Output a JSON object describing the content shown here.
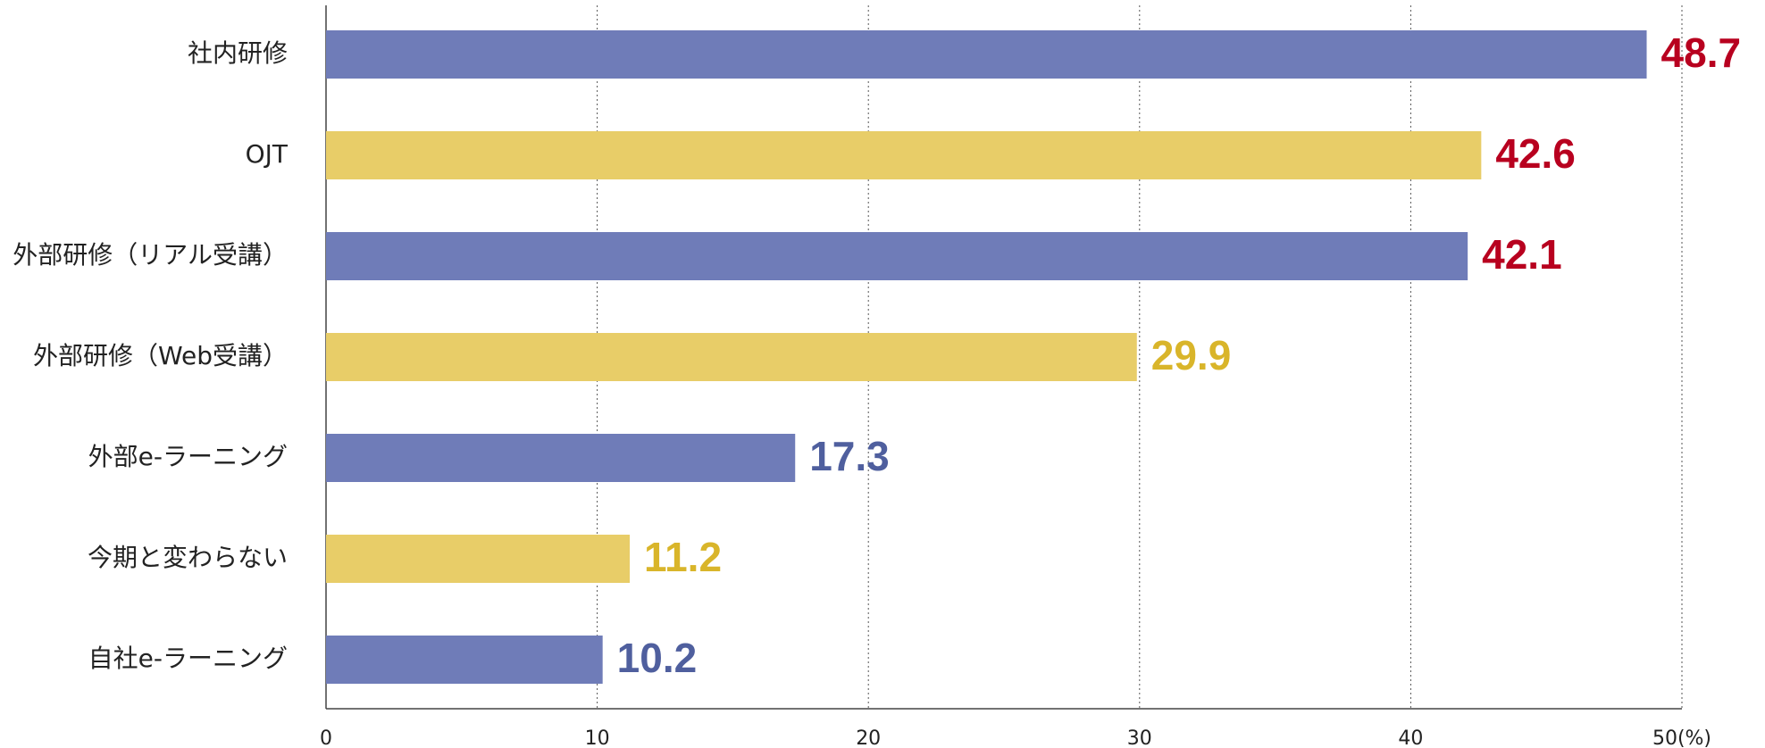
{
  "chart_data": {
    "type": "bar",
    "orientation": "horizontal",
    "categories": [
      "社内研修",
      "OJT",
      "外部研修（リアル受講）",
      "外部研修（Web受講）",
      "外部e-ラーニング",
      "今期と変わらない",
      "自社e-ラーニング"
    ],
    "values": [
      48.7,
      42.6,
      42.1,
      29.9,
      17.3,
      11.2,
      10.2
    ],
    "colors": [
      "#6f7cb8",
      "#e8cd68",
      "#6f7cb8",
      "#e8cd68",
      "#6f7cb8",
      "#e8cd68",
      "#6f7cb8"
    ],
    "label_colors": [
      "#b8001f",
      "#b8001f",
      "#b8001f",
      "#d9b52a",
      "#4f5f9e",
      "#d9b52a",
      "#4f5f9e"
    ],
    "xlim": [
      0,
      50
    ],
    "xticks": [
      0,
      10,
      20,
      30,
      40,
      {
        "value": 50,
        "label": "50(%)"
      }
    ],
    "grid": true
  }
}
